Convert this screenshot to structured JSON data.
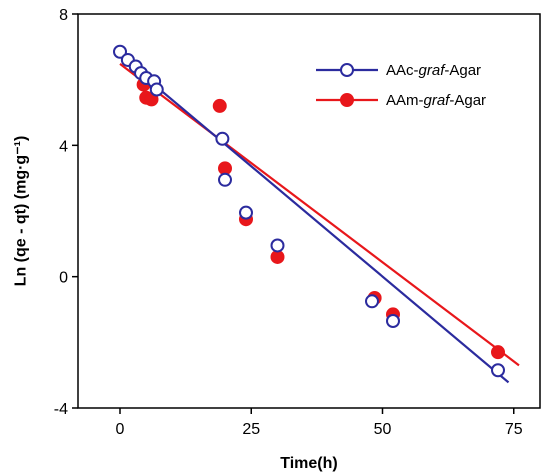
{
  "chart_data": {
    "type": "scatter",
    "xlabel": "Time(h)",
    "ylabel": "Ln (qe - qt) (mg·g⁻¹)",
    "xlim": [
      -8,
      80
    ],
    "ylim": [
      -4,
      8
    ],
    "xticks": [
      0,
      25,
      50,
      75
    ],
    "yticks": [
      -4,
      0,
      4,
      8
    ],
    "grid": false,
    "legend_position": "top-right",
    "series": [
      {
        "name": "AAc-graf-Agar",
        "name_parts": [
          "AAc-",
          "graf",
          "-Agar"
        ],
        "color": "#2b2b9e",
        "marker": "open-circle",
        "x": [
          0,
          1.5,
          3,
          4,
          5,
          6.5,
          7,
          19.5,
          20,
          24,
          30,
          48,
          52,
          72
        ],
        "y": [
          6.85,
          6.6,
          6.4,
          6.2,
          6.05,
          5.95,
          5.7,
          4.2,
          2.95,
          1.95,
          0.95,
          -0.75,
          -1.35,
          -2.85
        ],
        "fit": {
          "x": [
            0,
            74
          ],
          "y": [
            6.72,
            -3.22
          ]
        }
      },
      {
        "name": "AAm-graf-Agar",
        "name_parts": [
          "AAm-",
          "graf",
          "-Agar"
        ],
        "color": "#e8171b",
        "marker": "filled-circle",
        "x": [
          4.5,
          5,
          6,
          19,
          20,
          24,
          30,
          48.5,
          52,
          72
        ],
        "y": [
          5.85,
          5.45,
          5.4,
          5.2,
          3.3,
          1.75,
          0.6,
          -0.65,
          -1.15,
          -2.3
        ],
        "fit": {
          "x": [
            0,
            76
          ],
          "y": [
            6.48,
            -2.7
          ]
        }
      }
    ]
  }
}
